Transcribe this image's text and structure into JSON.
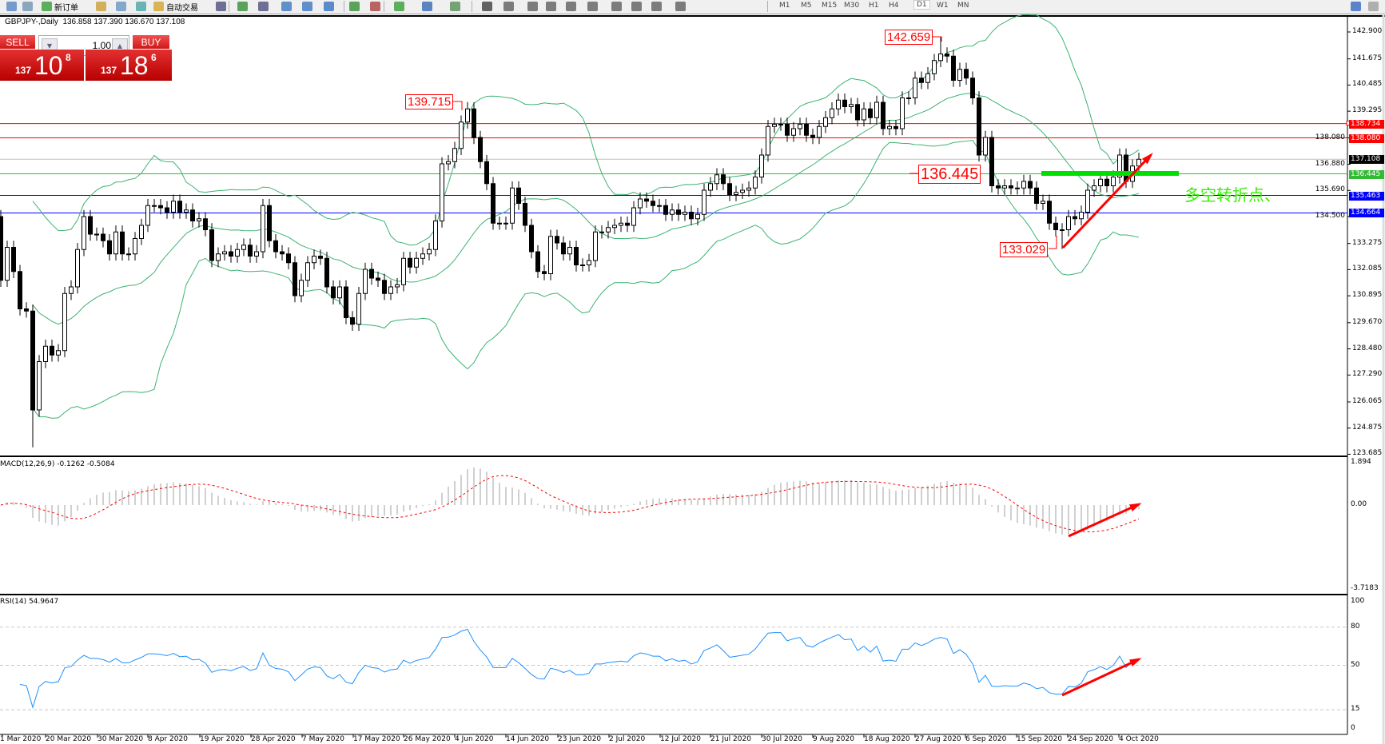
{
  "toolbar": {
    "new_order": "新订单",
    "auto_trading": "自动交易",
    "icons": [
      "list-icon",
      "zoom-icon",
      "new-order-icon",
      "book-icon",
      "cloud-icon",
      "signal-icon",
      "auto-trading-icon",
      "bar-chart-icon",
      "candle-chart-icon",
      "line-chart-icon",
      "zoom-in-icon",
      "zoom-out-icon",
      "tile-icon",
      "autoscroll-icon",
      "chart-shift-icon",
      "indicators-icon",
      "periodicity-icon",
      "templates-icon",
      "cursor-icon",
      "crosshair-icon",
      "vertical-line-icon",
      "horizontal-line-icon",
      "trendline-icon",
      "equidistant-channel-icon",
      "fibonacci-icon",
      "text-icon",
      "text-label-icon",
      "arrows-icon",
      "search-icon",
      "chat-icon"
    ],
    "timeframes": [
      "M1",
      "M5",
      "M15",
      "M30",
      "H1",
      "H4",
      "D1",
      "W1",
      "MN"
    ],
    "active_timeframe": "D1"
  },
  "header": {
    "symbol": "GBPJPY-,Daily",
    "ohlc": "136.858 137.390 136.670 137.108"
  },
  "trade_panel": {
    "sell_label": "SELL",
    "buy_label": "BUY",
    "lot": "1.00",
    "sell_price": {
      "small": "137",
      "big": "10",
      "sup": "8"
    },
    "buy_price": {
      "small": "137",
      "big": "18",
      "sup": "6"
    }
  },
  "colors": {
    "up_body": "#ffffff",
    "down_body": "#000000",
    "bands": "#3cb371",
    "resistance": "#ff0000",
    "support": "#0000ff",
    "pivot": "#33cc33",
    "bid_line": "#c0c0c0",
    "macd_hist": "#c0c0c0",
    "macd_signal": "#ff0000",
    "rsi": "#1e90ff",
    "annotation": "#ff0000",
    "text_note": "#33ee00"
  },
  "chart_data": [
    {
      "type": "candlestick",
      "symbol": "GBPJPY",
      "timeframe": "Daily",
      "first_open": 134.5,
      "closes": [
        131.6,
        133.1,
        132.0,
        130.3,
        130.2,
        125.7,
        127.9,
        128.6,
        128.2,
        128.4,
        131.0,
        131.3,
        133.0,
        134.5,
        133.7,
        133.7,
        133.4,
        132.8,
        133.8,
        132.8,
        132.8,
        133.5,
        134.1,
        135.0,
        135.0,
        134.9,
        134.7,
        135.2,
        134.7,
        134.8,
        134.3,
        134.4,
        133.9,
        132.5,
        132.8,
        132.9,
        132.7,
        133.0,
        133.2,
        132.7,
        132.9,
        135.0,
        133.4,
        132.9,
        132.8,
        132.4,
        130.9,
        131.6,
        132.4,
        132.7,
        132.6,
        131.3,
        130.8,
        131.3,
        129.9,
        129.6,
        131.0,
        132.1,
        131.7,
        131.6,
        131.0,
        131.3,
        131.4,
        132.6,
        132.2,
        132.6,
        132.8,
        133.0,
        134.3,
        136.9,
        137.0,
        137.6,
        138.8,
        139.4,
        138.1,
        137.0,
        136.0,
        134.2,
        134.2,
        134.2,
        135.8,
        135.1,
        134.1,
        132.9,
        132.0,
        131.9,
        133.6,
        133.3,
        132.8,
        133.1,
        132.3,
        132.3,
        132.5,
        133.8,
        133.8,
        134.0,
        134.1,
        134.2,
        134.1,
        134.9,
        135.3,
        135.2,
        135.0,
        135.0,
        134.6,
        134.8,
        134.6,
        134.7,
        134.4,
        134.6,
        135.7,
        136.0,
        136.4,
        136.0,
        135.5,
        135.6,
        135.7,
        135.8,
        136.3,
        137.3,
        138.6,
        138.7,
        138.7,
        138.2,
        138.5,
        138.7,
        138.2,
        138.1,
        138.6,
        139.0,
        139.4,
        139.8,
        139.5,
        139.6,
        138.9,
        139.4,
        139.0,
        139.7,
        138.5,
        138.6,
        138.5,
        139.9,
        139.9,
        140.8,
        140.6,
        141.0,
        141.6,
        141.9,
        141.8,
        140.7,
        141.2,
        140.8,
        139.9,
        137.3,
        138.1,
        135.9,
        135.8,
        135.9,
        135.8,
        135.8,
        136.1,
        135.8,
        135.1,
        135.2,
        134.2,
        133.9,
        133.9,
        134.5,
        134.4,
        134.7,
        135.7,
        135.9,
        136.2,
        135.9,
        136.3,
        137.3,
        136.1,
        136.8,
        137.108
      ],
      "marked_extremes": [
        {
          "label": "139.715",
          "value": 139.715,
          "kind": "high"
        },
        {
          "label": "142.659",
          "value": 142.659,
          "kind": "high"
        },
        {
          "label": "133.029",
          "value": 133.029,
          "kind": "low"
        },
        {
          "label": "136.445",
          "value": 136.445,
          "kind": "level"
        }
      ],
      "overlay": "Bollinger Bands (green)",
      "horizontal_lines": [
        {
          "value": 138.734,
          "label": "138.734",
          "color": "#ff0000"
        },
        {
          "value": 138.08,
          "label": "138.080",
          "color": "#ff0000"
        },
        {
          "value": 137.108,
          "label": "137.108",
          "color": "#000000"
        },
        {
          "value": 136.445,
          "label": "136.445",
          "color": "#33bb33"
        },
        {
          "value": 135.463,
          "label": "135.463",
          "color": "#0000ff"
        },
        {
          "value": 134.664,
          "label": "134.664",
          "color": "#0000ff"
        }
      ],
      "y_ticks": [
        "142.900",
        "141.675",
        "140.485",
        "139.295",
        "138.080",
        "136.880",
        "135.690",
        "134.500",
        "133.275",
        "132.085",
        "130.895",
        "129.670",
        "128.480",
        "127.290",
        "126.065",
        "124.875",
        "123.685"
      ],
      "ylim": [
        123.685,
        142.9
      ],
      "x_ticks": [
        "1 Mar 2020",
        "20 Mar 2020",
        "30 Mar 2020",
        "8 Apr 2020",
        "19 Apr 2020",
        "28 Apr 2020",
        "7 May 2020",
        "17 May 2020",
        "26 May 2020",
        "4 Jun 2020",
        "14 Jun 2020",
        "23 Jun 2020",
        "2 Jul 2020",
        "12 Jul 2020",
        "21 Jul 2020",
        "30 Jul 2020",
        "9 Aug 2020",
        "18 Aug 2020",
        "27 Aug 2020",
        "6 Sep 2020",
        "15 Sep 2020",
        "24 Sep 2020",
        "4 Oct 2020"
      ],
      "note": "多空转折点、"
    },
    {
      "type": "bar+line",
      "title": "MACD(12,26,9) -0.1262 -0.5084",
      "y_ticks": [
        "1.894",
        "0.00",
        "-3.7183"
      ],
      "ylim": [
        -3.7183,
        1.894
      ]
    },
    {
      "type": "line",
      "title": "RSI(14) 54.9647",
      "y_ticks": [
        "100",
        "80",
        "50",
        "15",
        "0"
      ],
      "levels": [
        80,
        50,
        15
      ],
      "ylim": [
        0,
        100
      ]
    }
  ]
}
